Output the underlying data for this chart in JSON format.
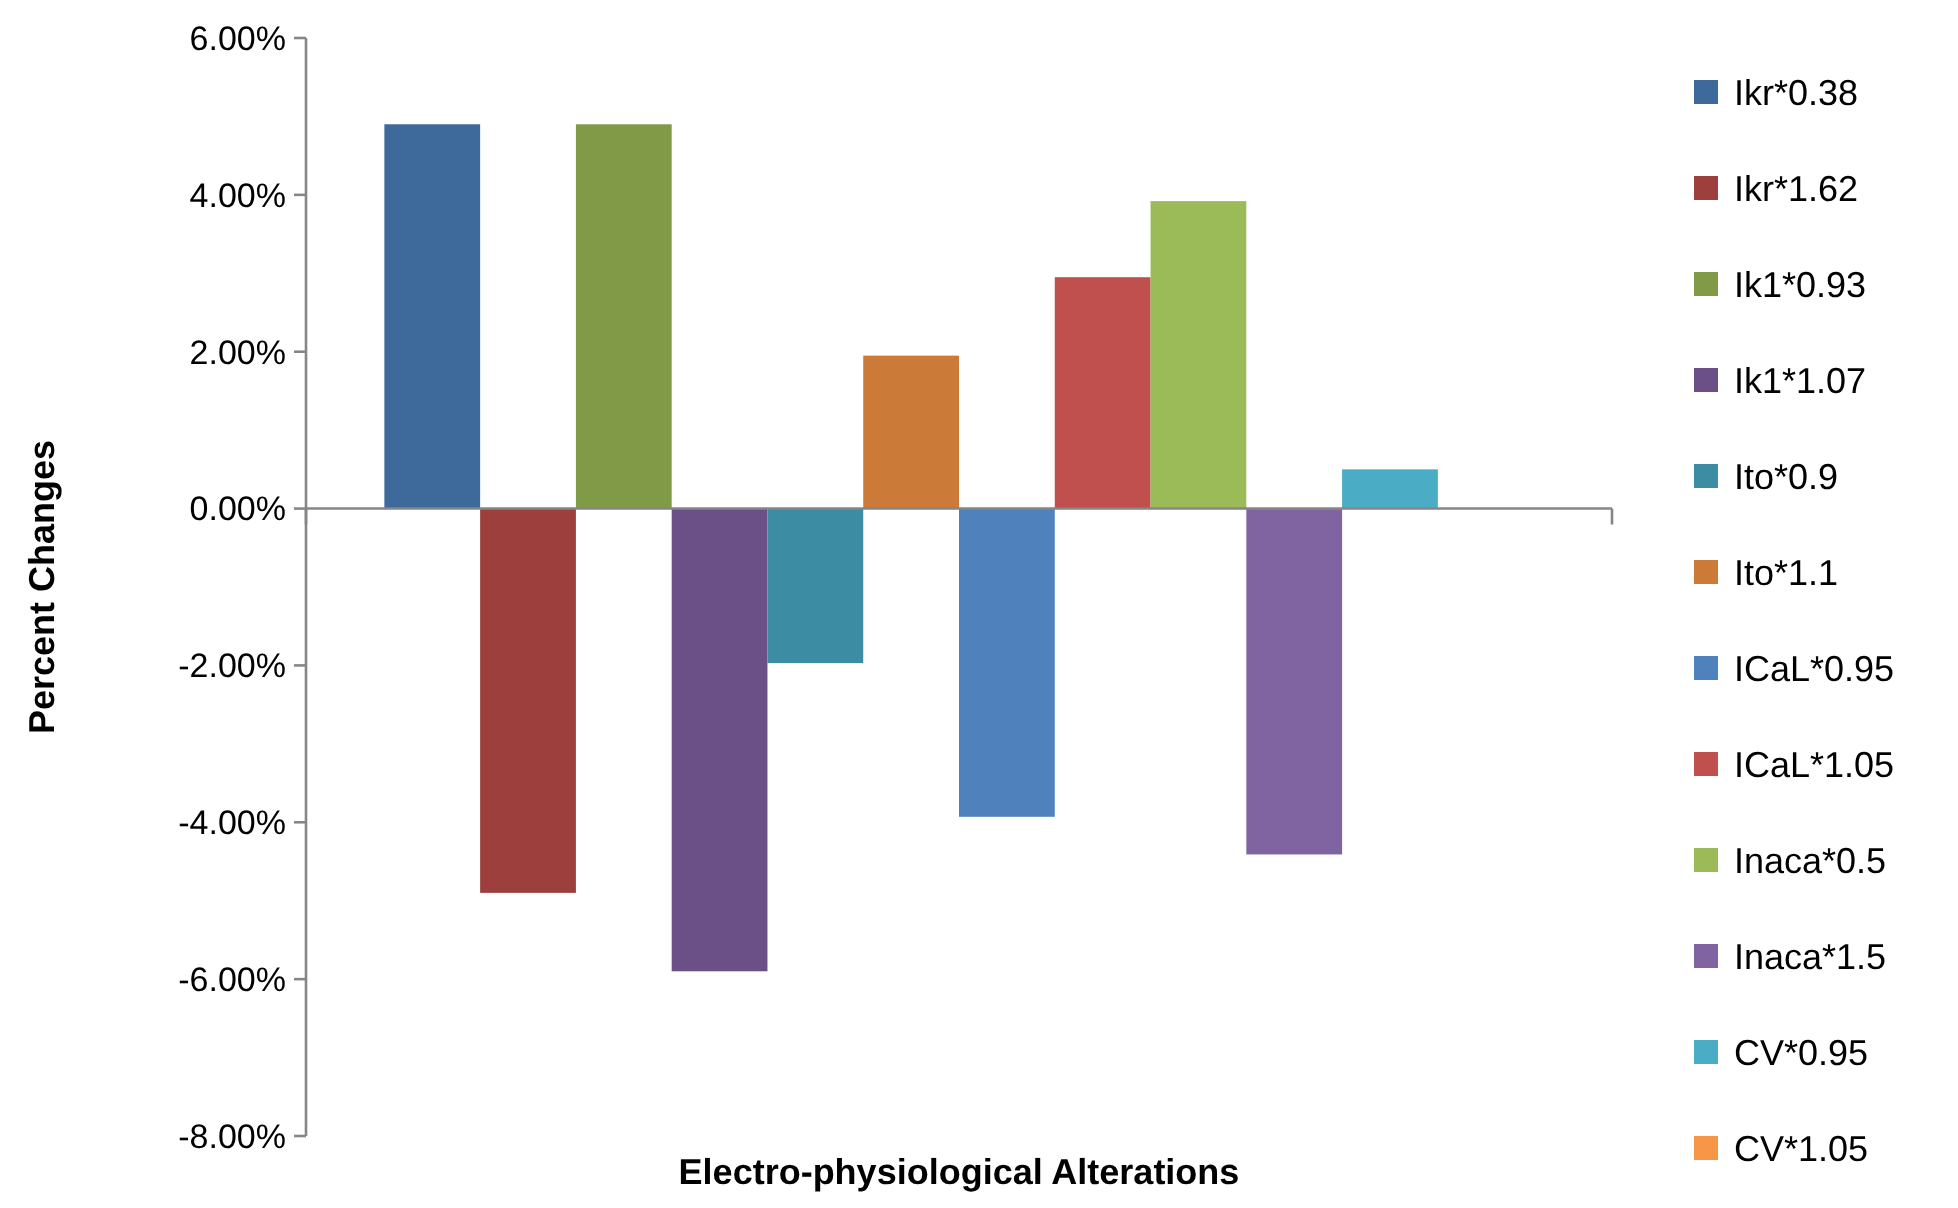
{
  "chart_data": {
    "type": "bar",
    "xlabel": "Electro-physiological Alterations",
    "ylabel": "Percent Changes",
    "categories": [
      null
    ],
    "series": [
      {
        "name": "Ikr*0.38",
        "color": "#3d6a9b",
        "values": [
          4.9
        ]
      },
      {
        "name": "Ikr*1.62",
        "color": "#9d3f3c",
        "values": [
          -4.9
        ]
      },
      {
        "name": "Ik1*0.93",
        "color": "#809a47",
        "values": [
          4.9
        ]
      },
      {
        "name": "Ik1*1.07",
        "color": "#6a5087",
        "values": [
          -5.9
        ]
      },
      {
        "name": "Ito*0.9",
        "color": "#3c8ca3",
        "values": [
          -1.97
        ]
      },
      {
        "name": "Ito*1.1",
        "color": "#cc7a37",
        "values": [
          1.95
        ]
      },
      {
        "name": "ICaL*0.95",
        "color": "#4f81bc",
        "values": [
          -3.93
        ]
      },
      {
        "name": "ICaL*1.05",
        "color": "#c0504d",
        "values": [
          2.95
        ]
      },
      {
        "name": "Inaca*0.5",
        "color": "#9bbb59",
        "values": [
          3.92
        ]
      },
      {
        "name": "Inaca*1.5",
        "color": "#8064a1",
        "values": [
          -4.41
        ]
      },
      {
        "name": "CV*0.95",
        "color": "#4bacc6",
        "values": [
          0.5
        ]
      },
      {
        "name": "CV*1.05",
        "color": "#f79646",
        "values": [
          0
        ]
      }
    ],
    "ylim": [
      -8,
      6
    ],
    "yticks": [
      {
        "value": -8,
        "label": "-8.00%"
      },
      {
        "value": -6,
        "label": "-6.00%"
      },
      {
        "value": -4,
        "label": "-4.00%"
      },
      {
        "value": -2,
        "label": "-2.00%"
      },
      {
        "value": 0,
        "label": "0.00%"
      },
      {
        "value": 2,
        "label": "2.00%"
      },
      {
        "value": 4,
        "label": "4.00%"
      },
      {
        "value": 6,
        "label": "6.00%"
      }
    ],
    "legend": "right"
  }
}
